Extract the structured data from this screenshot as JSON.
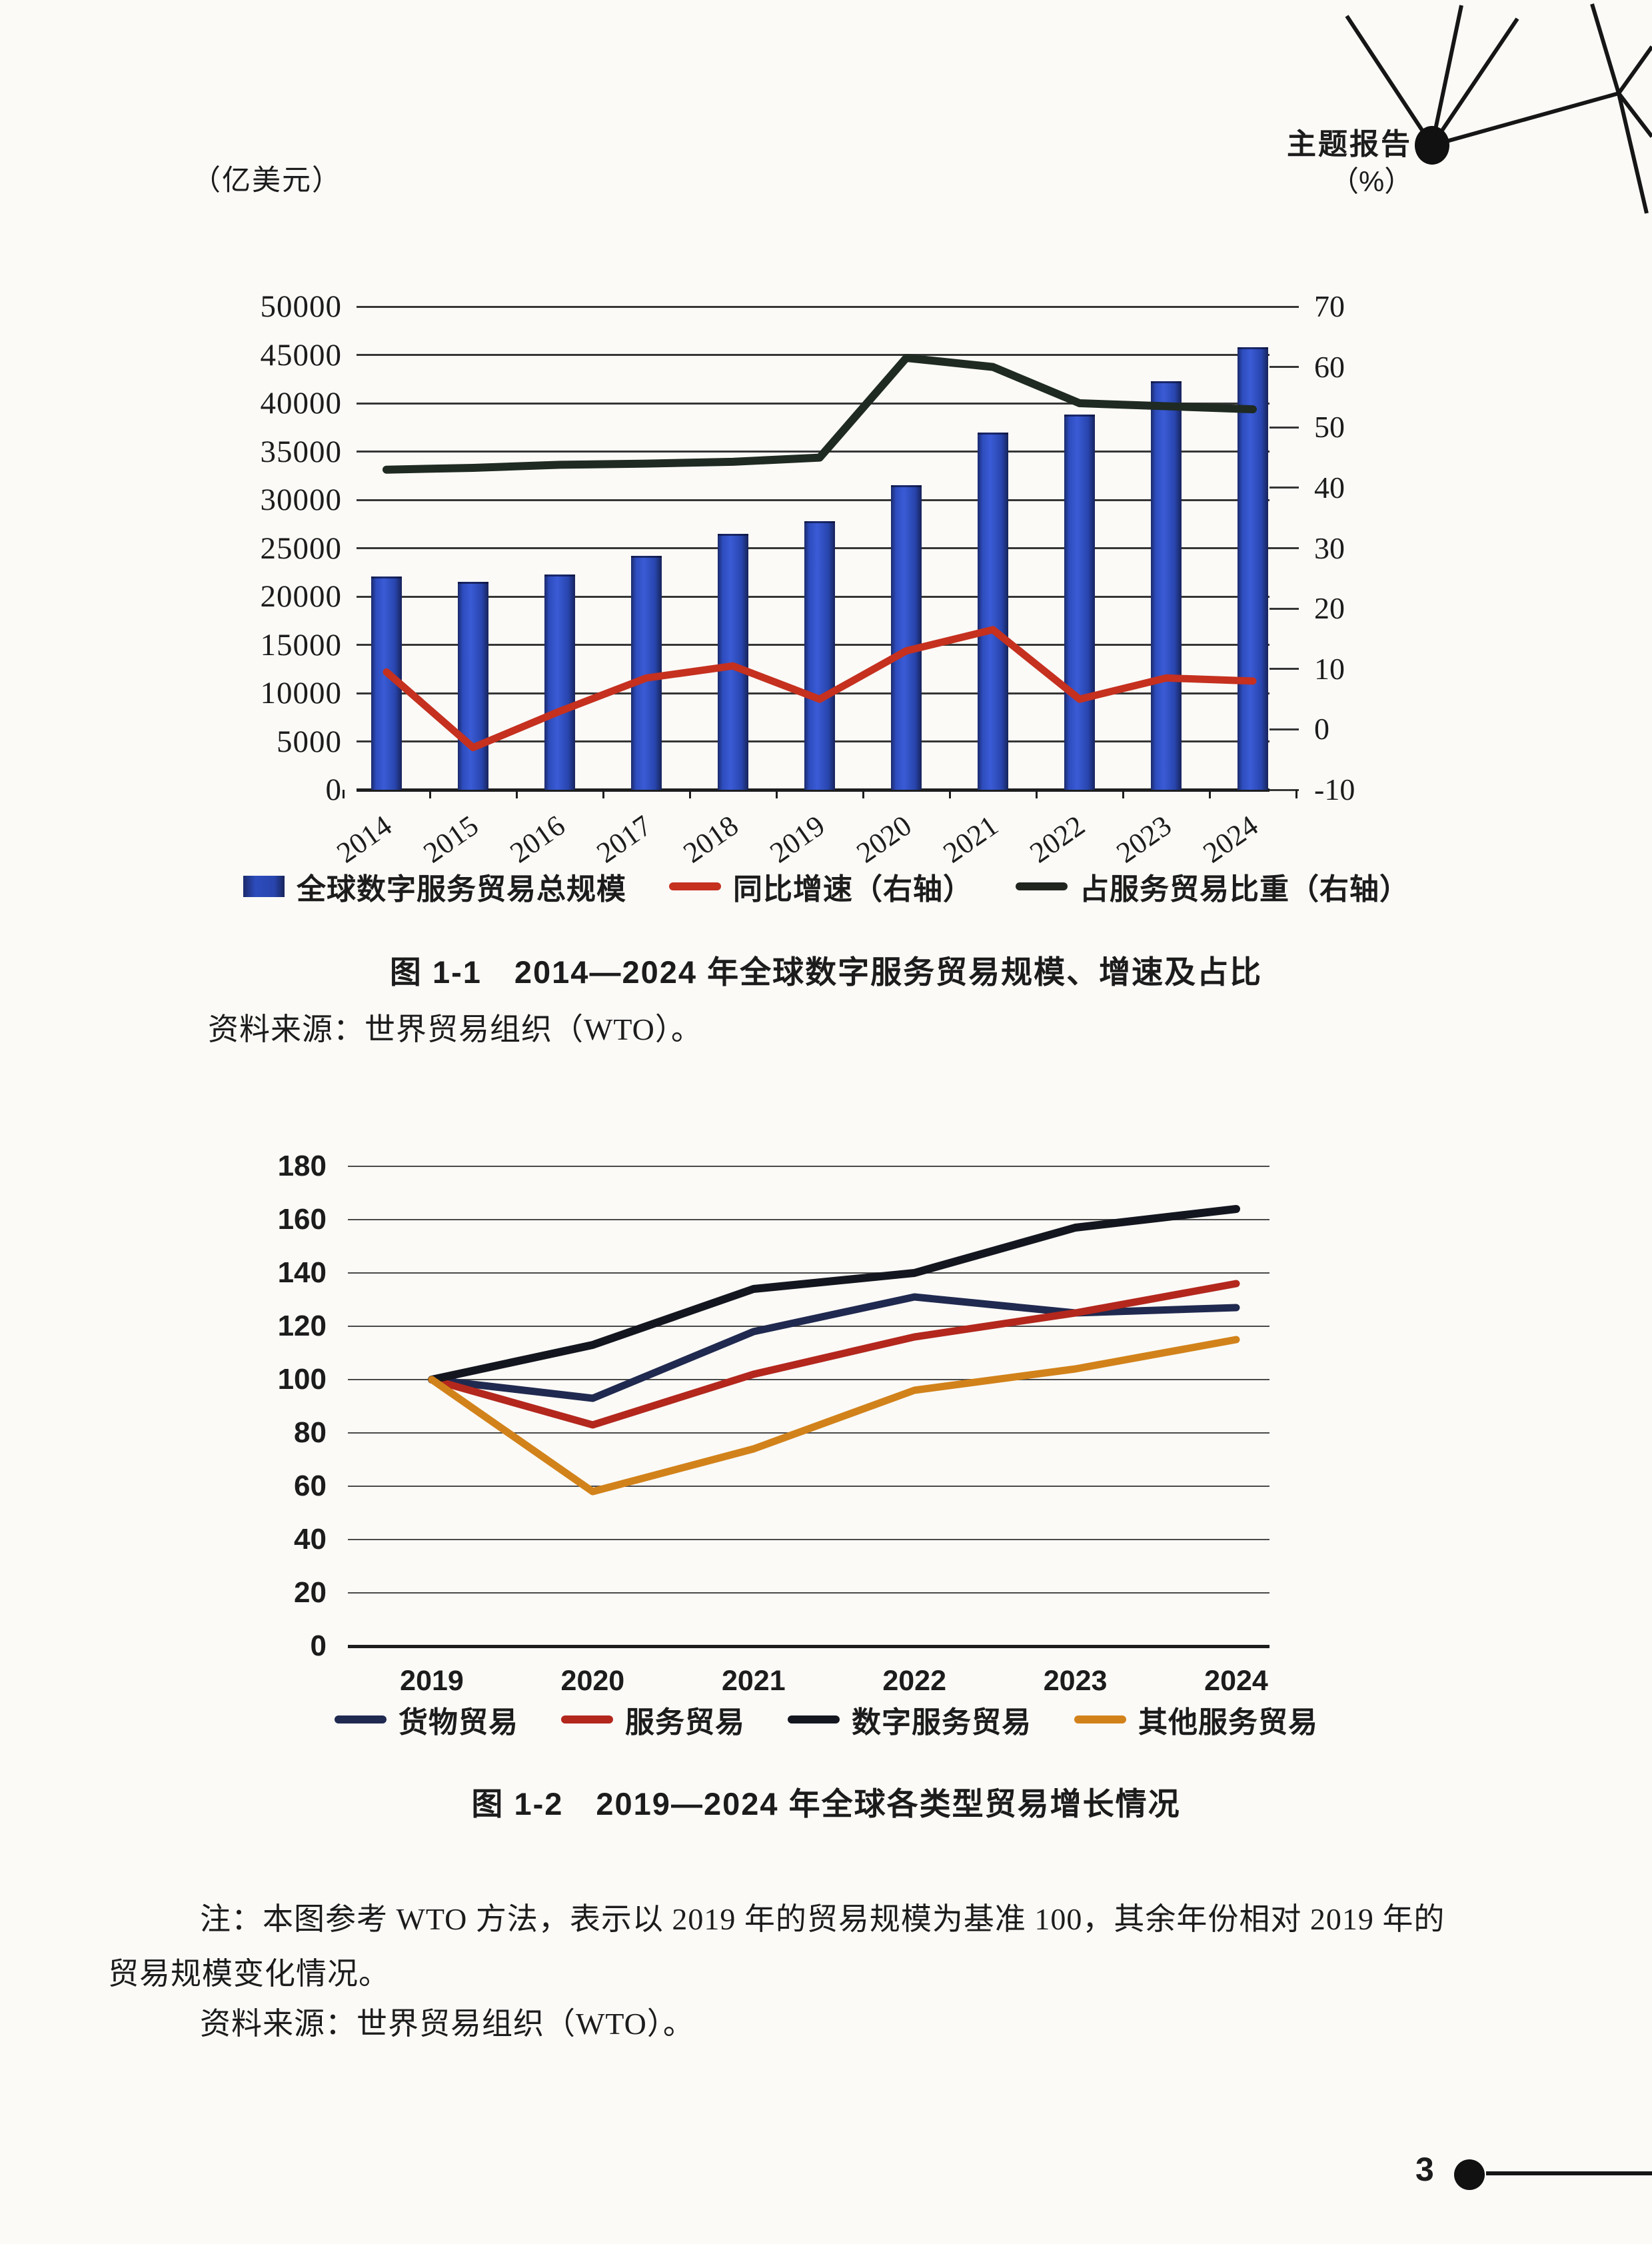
{
  "page": {
    "header_tag": "主题报告",
    "page_number": "3"
  },
  "chart1": {
    "left_axis_unit": "（亿美元）",
    "right_axis_unit": "（%）",
    "left_ticks": [
      "50000",
      "45000",
      "40000",
      "35000",
      "30000",
      "25000",
      "20000",
      "15000",
      "10000",
      "5000",
      "0"
    ],
    "right_ticks": [
      "70",
      "60",
      "50",
      "40",
      "30",
      "20",
      "10",
      "0",
      "-10"
    ],
    "legend": [
      {
        "label": "全球数字服务贸易总规模",
        "swatch": "rect",
        "color": "#22307c"
      },
      {
        "label": "同比增速（右轴）",
        "swatch": "line",
        "color": "#c5301f"
      },
      {
        "label": "占服务贸易比重（右轴）",
        "swatch": "line",
        "color": "#20261f"
      }
    ],
    "caption": "图 1-1　2014—2024 年全球数字服务贸易规模、增速及占比",
    "source": "资料来源：世界贸易组织（WTO）。"
  },
  "chart2": {
    "y_ticks": [
      "180",
      "160",
      "140",
      "120",
      "100",
      "80",
      "60",
      "40",
      "20",
      "0"
    ],
    "legend": [
      {
        "label": "货物贸易",
        "swatch": "line",
        "color": "#20294f"
      },
      {
        "label": "服务贸易",
        "swatch": "line",
        "color": "#b3271d"
      },
      {
        "label": "数字服务贸易",
        "swatch": "line",
        "color": "#14161f"
      },
      {
        "label": "其他服务贸易",
        "swatch": "line",
        "color": "#d2821a"
      }
    ],
    "caption": "图 1-2　2019—2024 年全球各类型贸易增长情况",
    "note_lines": [
      "注：本图参考 WTO 方法，表示以 2019 年的贸易规模为基准 100，其余年份相对 2019 年的",
      "贸易规模变化情况。"
    ],
    "source": "资料来源：世界贸易组织（WTO）。"
  },
  "chart_data": [
    {
      "type": "bar",
      "title": "2014—2024年全球数字服务贸易规模、增速及占比",
      "categories": [
        "2014",
        "2015",
        "2016",
        "2017",
        "2018",
        "2019",
        "2020",
        "2021",
        "2022",
        "2023",
        "2024"
      ],
      "left_ylabel": "亿美元",
      "left_ylim": [
        0,
        50000
      ],
      "right_ylabel": "%",
      "right_ylim": [
        -10,
        70
      ],
      "grid": "horizontal",
      "legend_position": "bottom",
      "series": [
        {
          "id": "digital-trade-bars",
          "name": "全球数字服务贸易总规模",
          "type": "bar",
          "axis": "left",
          "color": "#2a45ae",
          "values": [
            22100,
            21500,
            22300,
            24200,
            26500,
            27800,
            31500,
            37000,
            38800,
            42300,
            45800
          ]
        },
        {
          "id": "growth-line",
          "name": "同比增速（右轴）",
          "type": "line",
          "axis": "right",
          "color": "#c5301f",
          "values": [
            9.5,
            -3,
            3,
            8.5,
            10.5,
            5,
            13,
            16.5,
            5,
            8.5,
            8
          ]
        },
        {
          "id": "share-line",
          "name": "占服务贸易比重（右轴）",
          "type": "line",
          "axis": "right",
          "color": "#1f2a22",
          "values": [
            43,
            43.3,
            43.8,
            44,
            44.3,
            45,
            61.5,
            60,
            54,
            53.5,
            53
          ]
        }
      ]
    },
    {
      "type": "line",
      "title": "2019—2024年全球各类型贸易增长情况",
      "categories": [
        "2019",
        "2020",
        "2021",
        "2022",
        "2023",
        "2024"
      ],
      "ylim": [
        0,
        180
      ],
      "baseline_note": "2019年贸易规模=基准100",
      "grid": "horizontal",
      "legend_position": "bottom",
      "series": [
        {
          "id": "goods-line",
          "name": "货物贸易",
          "color": "#20294f",
          "values": [
            100,
            93,
            118,
            131,
            125,
            127
          ]
        },
        {
          "id": "services-line",
          "name": "服务贸易",
          "color": "#b3271d",
          "values": [
            100,
            83,
            102,
            116,
            125,
            136
          ]
        },
        {
          "id": "digital-line",
          "name": "数字服务贸易",
          "color": "#14161f",
          "values": [
            100,
            113,
            134,
            140,
            157,
            164
          ]
        },
        {
          "id": "other-services-line",
          "name": "其他服务贸易",
          "color": "#d2821a",
          "values": [
            100,
            58,
            74,
            96,
            104,
            115
          ]
        }
      ]
    }
  ]
}
